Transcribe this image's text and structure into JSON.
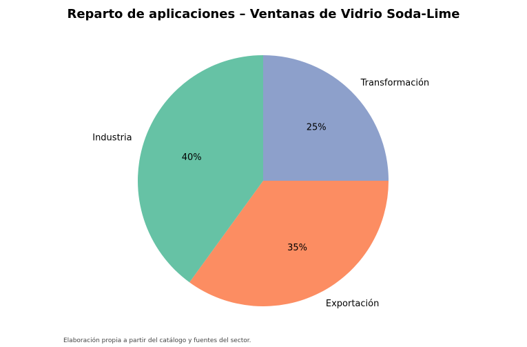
{
  "chart_data": {
    "type": "pie",
    "title": "Reparto de aplicaciones – Ventanas de Vidrio Soda-Lime",
    "source": "Elaboración propia a partir del catálogo y fuentes del sector.",
    "start_angle_deg": 90,
    "direction": "clockwise",
    "slices": [
      {
        "label": "Transformación",
        "value": 25,
        "pct_label": "25%",
        "color": "#8da0cb"
      },
      {
        "label": "Exportación",
        "value": 35,
        "pct_label": "35%",
        "color": "#fc8d62"
      },
      {
        "label": "Industria",
        "value": 40,
        "pct_label": "40%",
        "color": "#66c2a5"
      }
    ]
  }
}
